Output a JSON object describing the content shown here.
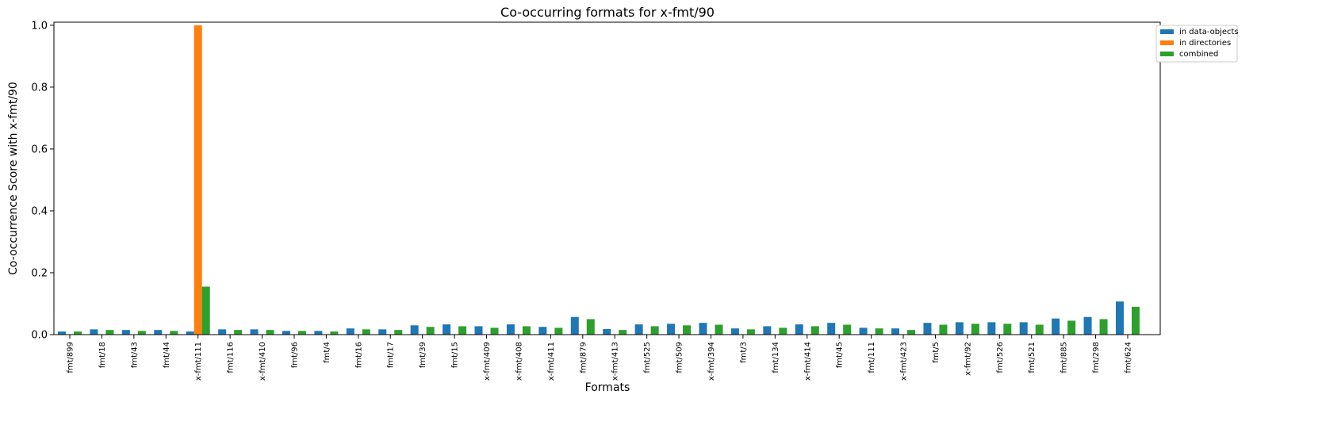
{
  "chart_data": {
    "type": "bar",
    "title": "Co-occurring formats for x-fmt/90",
    "xlabel": "Formats",
    "ylabel": "Co-occurrence Score with x-fmt/90",
    "ylim": [
      0,
      1.01
    ],
    "yticks": [
      "0.0",
      "0.2",
      "0.4",
      "0.6",
      "0.8",
      "1.0"
    ],
    "ytick_values": [
      0,
      0.2,
      0.4,
      0.6,
      0.8,
      1.0
    ],
    "legend_position": "top-right-outside",
    "grid": false,
    "categories": [
      "fmt/899",
      "fmt/18",
      "fmt/43",
      "fmt/44",
      "x-fmt/111",
      "fmt/116",
      "x-fmt/410",
      "fmt/96",
      "fmt/4",
      "fmt/16",
      "fmt/17",
      "fmt/39",
      "fmt/15",
      "x-fmt/409",
      "x-fmt/408",
      "x-fmt/411",
      "fmt/879",
      "x-fmt/413",
      "fmt/525",
      "fmt/509",
      "x-fmt/394",
      "fmt/3",
      "fmt/134",
      "x-fmt/414",
      "fmt/45",
      "fmt/111",
      "x-fmt/423",
      "fmt/5",
      "x-fmt/92",
      "fmt/526",
      "fmt/521",
      "fmt/885",
      "fmt/298",
      "fmt/624"
    ],
    "series": [
      {
        "name": "in data-objects",
        "color": "#1f77b4",
        "values": [
          0.01,
          0.017,
          0.015,
          0.015,
          0.01,
          0.017,
          0.017,
          0.012,
          0.012,
          0.02,
          0.017,
          0.03,
          0.033,
          0.027,
          0.033,
          0.025,
          0.057,
          0.018,
          0.033,
          0.035,
          0.038,
          0.02,
          0.027,
          0.033,
          0.038,
          0.022,
          0.02,
          0.038,
          0.04,
          0.04,
          0.04,
          0.052,
          0.057,
          0.107
        ]
      },
      {
        "name": "in directories",
        "color": "#ff7f0e",
        "values": [
          0,
          0,
          0,
          0,
          1.0,
          0,
          0,
          0,
          0,
          0,
          0,
          0,
          0,
          0,
          0,
          0,
          0,
          0,
          0,
          0,
          0,
          0,
          0,
          0,
          0,
          0,
          0,
          0,
          0,
          0,
          0,
          0,
          0,
          0
        ]
      },
      {
        "name": "combined",
        "color": "#2ca02c",
        "values": [
          0.01,
          0.015,
          0.012,
          0.012,
          0.155,
          0.015,
          0.015,
          0.012,
          0.01,
          0.017,
          0.015,
          0.025,
          0.027,
          0.022,
          0.027,
          0.022,
          0.05,
          0.015,
          0.027,
          0.03,
          0.032,
          0.017,
          0.022,
          0.027,
          0.032,
          0.02,
          0.015,
          0.032,
          0.035,
          0.035,
          0.032,
          0.045,
          0.05,
          0.09
        ]
      }
    ]
  }
}
